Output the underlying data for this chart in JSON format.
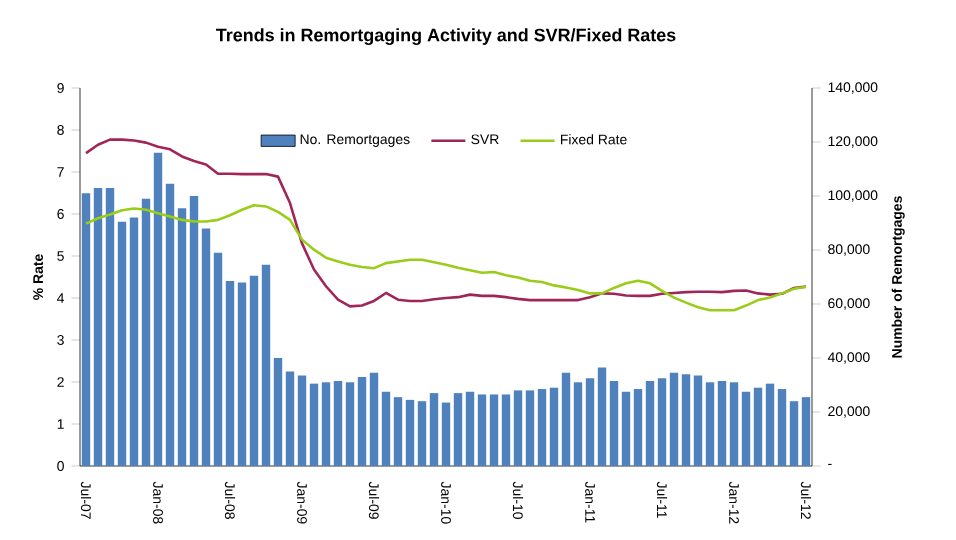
{
  "chart_data": {
    "type": "bar",
    "title": "Trends in Remortgaging Activity and SVR/Fixed Rates",
    "categories": [
      "Jul-07",
      null,
      null,
      null,
      null,
      null,
      "Jan-08",
      null,
      null,
      null,
      null,
      null,
      "Jul-08",
      null,
      null,
      null,
      null,
      null,
      "Jan-09",
      null,
      null,
      null,
      null,
      null,
      "Jul-09",
      null,
      null,
      null,
      null,
      null,
      "Jan-10",
      null,
      null,
      null,
      null,
      null,
      "Jul-10",
      null,
      null,
      null,
      null,
      null,
      "Jan-11",
      null,
      null,
      null,
      null,
      null,
      "Jul-11",
      null,
      null,
      null,
      null,
      null,
      "Jan-12",
      null,
      null,
      null,
      null,
      null,
      "Jul-12"
    ],
    "series": [
      {
        "name": "No. Remortgages",
        "axis": "y2",
        "color": "#4f81bd",
        "values": [
          101000,
          103000,
          103000,
          90500,
          92000,
          99000,
          116000,
          104500,
          95500,
          100000,
          88000,
          79000,
          68500,
          68000,
          70500,
          74500,
          40000,
          35000,
          33500,
          30500,
          31000,
          31500,
          31000,
          33000,
          34500,
          27500,
          25500,
          24500,
          24000,
          27000,
          23500,
          27000,
          27500,
          26500,
          26500,
          26500,
          28000,
          28000,
          28500,
          29000,
          34500,
          31000,
          32500,
          36500,
          31500,
          27500,
          28500,
          31500,
          32500,
          34500,
          34000,
          33500,
          31000,
          31500,
          31000,
          27500,
          29000,
          30500,
          28500,
          24000,
          25500
        ]
      },
      {
        "name": "SVR",
        "type": "line",
        "color": "#a0265a",
        "values": [
          7.45,
          7.65,
          7.77,
          7.77,
          7.75,
          7.7,
          7.6,
          7.54,
          7.37,
          7.26,
          7.18,
          6.96,
          6.96,
          6.95,
          6.95,
          6.95,
          6.89,
          6.26,
          5.3,
          4.68,
          4.28,
          3.96,
          3.8,
          3.82,
          3.93,
          4.12,
          3.96,
          3.93,
          3.93,
          3.97,
          4.0,
          4.02,
          4.08,
          4.05,
          4.05,
          4.02,
          3.98,
          3.95,
          3.95,
          3.95,
          3.95,
          3.95,
          4.02,
          4.11,
          4.1,
          4.06,
          4.05,
          4.05,
          4.1,
          4.12,
          4.14,
          4.15,
          4.15,
          4.14,
          4.17,
          4.18,
          4.11,
          4.08,
          4.1,
          4.24,
          4.27
        ]
      },
      {
        "name": "Fixed Rate",
        "type": "line",
        "color": "#9acd1a",
        "values": [
          5.77,
          5.9,
          5.99,
          6.09,
          6.13,
          6.1,
          6.02,
          5.94,
          5.86,
          5.82,
          5.82,
          5.86,
          5.97,
          6.1,
          6.21,
          6.18,
          6.05,
          5.86,
          5.39,
          5.15,
          4.96,
          4.87,
          4.79,
          4.74,
          4.71,
          4.83,
          4.87,
          4.91,
          4.91,
          4.85,
          4.79,
          4.72,
          4.66,
          4.6,
          4.62,
          4.54,
          4.49,
          4.41,
          4.38,
          4.3,
          4.25,
          4.19,
          4.11,
          4.11,
          4.24,
          4.35,
          4.41,
          4.35,
          4.17,
          4.01,
          3.89,
          3.78,
          3.71,
          3.71,
          3.71,
          3.82,
          3.95,
          4.01,
          4.11,
          4.22,
          4.27
        ]
      }
    ],
    "ylabel": "% Rate",
    "y2label": "Number of Remortgages",
    "ylim": [
      0,
      9
    ],
    "yticks": [
      0,
      1,
      2,
      3,
      4,
      5,
      6,
      7,
      8,
      9
    ],
    "y2lim": [
      0,
      140000
    ],
    "y2ticks": [
      {
        "value": 0,
        "label": "-"
      },
      {
        "value": 20000,
        "label": "20,000"
      },
      {
        "value": 40000,
        "label": "40,000"
      },
      {
        "value": 60000,
        "label": "60,000"
      },
      {
        "value": 80000,
        "label": "80,000"
      },
      {
        "value": 100000,
        "label": "100,000"
      },
      {
        "value": 120000,
        "label": "120,000"
      },
      {
        "value": 140000,
        "label": "140,000"
      }
    ],
    "legend": "top",
    "marker": "none",
    "grid": false
  }
}
